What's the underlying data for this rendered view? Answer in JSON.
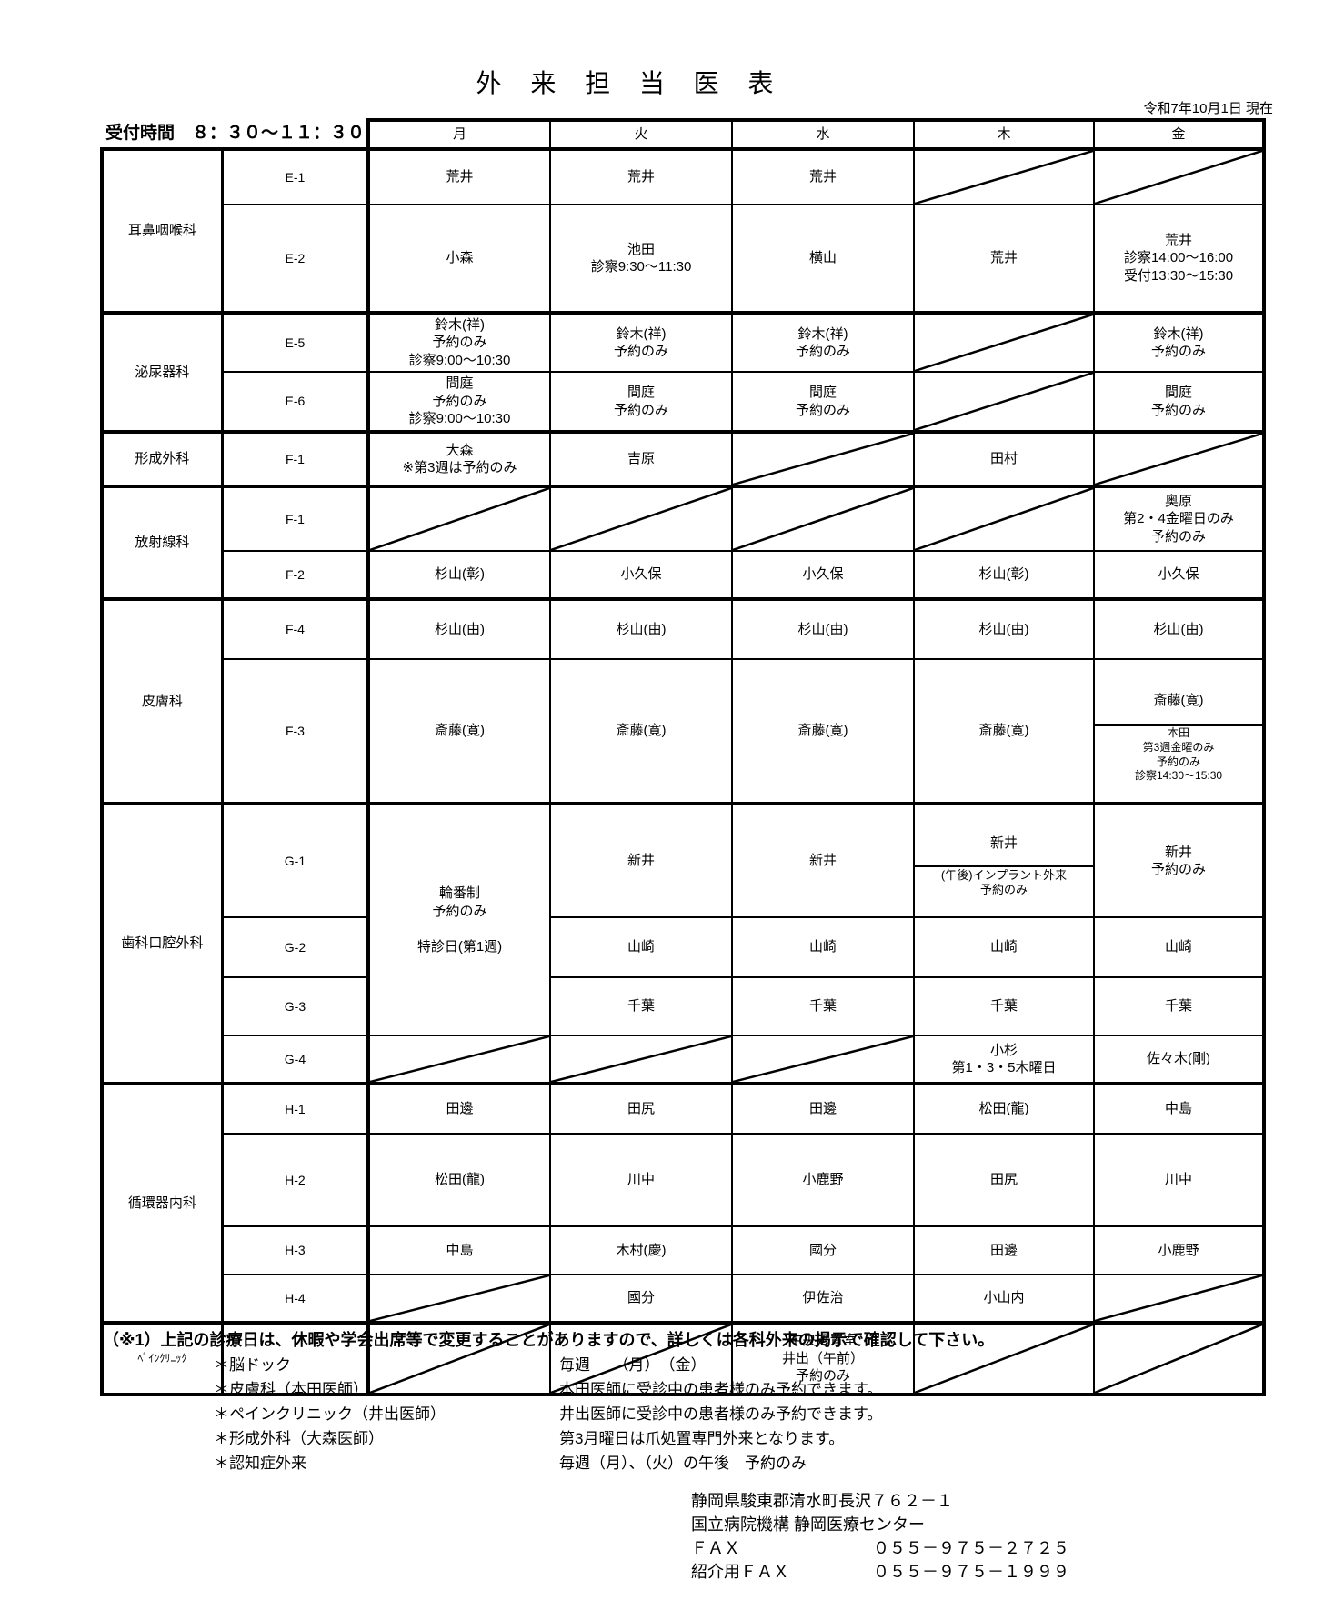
{
  "page": {
    "title": "外 来 担 当 医 表",
    "as_of": "令和7年10月1日 現在",
    "reception_label": "受付時間　８：３０～１１：３０"
  },
  "days": [
    "月",
    "火",
    "水",
    "木",
    "金"
  ],
  "table": {
    "sections": [
      {
        "dept": "耳鼻咽喉科",
        "rows": [
          {
            "room": "E-1",
            "mon": "荒井",
            "tue": "荒井",
            "wed": "荒井",
            "thu": "",
            "fri": "",
            "closed": [
              "木",
              "金"
            ]
          },
          {
            "room": "E-2",
            "mon": "小森",
            "tue": "池田\n診察9:30～11:30",
            "wed": "横山",
            "thu": "荒井",
            "fri": "荒井\n診察14:00～16:00\n受付13:30～15:30",
            "closed": []
          }
        ]
      },
      {
        "dept": "泌尿器科",
        "rows": [
          {
            "room": "E-5",
            "mon": "鈴木(祥)\n予約のみ\n診察9:00～10:30",
            "tue": "鈴木(祥)\n予約のみ",
            "wed": "鈴木(祥)\n予約のみ",
            "thu": "",
            "fri": "鈴木(祥)\n予約のみ",
            "closed": [
              "木"
            ]
          },
          {
            "room": "E-6",
            "mon": "間庭\n予約のみ\n診察9:00～10:30",
            "tue": "間庭\n予約のみ",
            "wed": "間庭\n予約のみ",
            "thu": "",
            "fri": "間庭\n予約のみ",
            "closed": [
              "木"
            ]
          }
        ]
      },
      {
        "dept": "形成外科",
        "rows": [
          {
            "room": "F-1",
            "mon": "大森\n※第3週は予約のみ",
            "tue": "吉原",
            "wed": "",
            "thu": "田村",
            "fri": "",
            "closed": [
              "水",
              "金"
            ]
          }
        ]
      },
      {
        "dept": "放射線科",
        "rows": [
          {
            "room": "F-1",
            "mon": "",
            "tue": "",
            "wed": "",
            "thu": "",
            "fri": "奥原\n第2・4金曜日のみ\n予約のみ",
            "closed": [
              "月",
              "火",
              "水",
              "木"
            ]
          },
          {
            "room": "F-2",
            "mon": "杉山(彰)",
            "tue": "小久保",
            "wed": "小久保",
            "thu": "杉山(彰)",
            "fri": "小久保",
            "closed": []
          }
        ]
      },
      {
        "dept": "皮膚科",
        "rows": [
          {
            "room": "F-4",
            "mon": "杉山(由)",
            "tue": "杉山(由)",
            "wed": "杉山(由)",
            "thu": "杉山(由)",
            "fri": "杉山(由)",
            "closed": []
          },
          {
            "room": "F-3",
            "mon": "斎藤(寛)",
            "tue": "斎藤(寛)",
            "wed": "斎藤(寛)",
            "thu": "斎藤(寛)",
            "fri": {
              "top": "斎藤(寛)",
              "bottom": "本田\n第3週金曜のみ\n予約のみ\n診察14:30～15:30"
            },
            "closed": []
          }
        ]
      },
      {
        "dept": "歯科口腔外科",
        "mon_merged": "輪番制\n予約のみ\n\n特診日(第1週)",
        "rows": [
          {
            "room": "G-1",
            "tue": "新井",
            "wed": "新井",
            "thu": {
              "top": "新井",
              "bottom": "(午後)インプラント外来\n予約のみ"
            },
            "fri": "新井\n予約のみ",
            "closed": []
          },
          {
            "room": "G-2",
            "tue": "山崎",
            "wed": "山崎",
            "thu": "山崎",
            "fri": "山崎",
            "closed": []
          },
          {
            "room": "G-3",
            "tue": "千葉",
            "wed": "千葉",
            "thu": "千葉",
            "fri": "千葉",
            "closed": []
          },
          {
            "room": "G-4",
            "mon": "",
            "tue": "",
            "wed": "",
            "thu": "小杉\n第1・3・5木曜日",
            "fri": "佐々木(剛)",
            "closed": [
              "月",
              "火",
              "水"
            ]
          }
        ]
      },
      {
        "dept": "循環器内科",
        "rows": [
          {
            "room": "H-1",
            "mon": "田邊",
            "tue": "田尻",
            "wed": "田邊",
            "thu": "松田(龍)",
            "fri": "中島",
            "closed": []
          },
          {
            "room": "H-2",
            "mon": "松田(龍)",
            "tue": "川中",
            "wed": "小鹿野",
            "thu": "田尻",
            "fri": "川中",
            "closed": []
          },
          {
            "room": "H-3",
            "mon": "中島",
            "tue": "木村(慶)",
            "wed": "國分",
            "thu": "田邊",
            "fri": "小鹿野",
            "closed": []
          },
          {
            "room": "H-4",
            "mon": "",
            "tue": "國分",
            "wed": "伊佐治",
            "thu": "小山内",
            "fri": "",
            "closed": [
              "月",
              "金"
            ]
          }
        ]
      },
      {
        "dept": "ﾍﾟｲﾝｸﾘﾆｯｸ",
        "rows": [
          {
            "room": "",
            "mon": "",
            "tue": "",
            "wed": "中央処置室\n井出（午前）\n予約のみ",
            "thu": "",
            "fri": "",
            "closed": [
              "月",
              "火",
              "木",
              "金"
            ]
          }
        ]
      }
    ]
  },
  "footnote": {
    "main": "（※1）上記の診療日は、休暇や学会出席等で変更することがありますので、詳しくは各科外来の掲示で確認して下さい。",
    "items": [
      {
        "label": "＊脳ドック",
        "desc": "毎週　　（月）　（金）"
      },
      {
        "label": "＊皮膚科（本田医師）",
        "desc": "本田医師に受診中の患者様のみ予約できます。"
      },
      {
        "label": "＊ペインクリニック（井出医師）",
        "desc": "井出医師に受診中の患者様のみ予約できます。"
      },
      {
        "label": "＊形成外科（大森医師）",
        "desc": "第3月曜日は爪処置専門外来となります。"
      },
      {
        "label": "＊認知症外来",
        "desc": "毎週（月）、（火）の午後　予約のみ"
      }
    ]
  },
  "contact": {
    "address1": "静岡県駿東郡清水町長沢７６２－１",
    "address2": "国立病院機構 静岡医療センター",
    "fax_label": "ＦＡＸ",
    "fax": "０５５－９７５－２７２５",
    "referral_fax_label": "紹介用ＦＡＸ",
    "referral_fax": "０５５－９７５－１９９９"
  }
}
